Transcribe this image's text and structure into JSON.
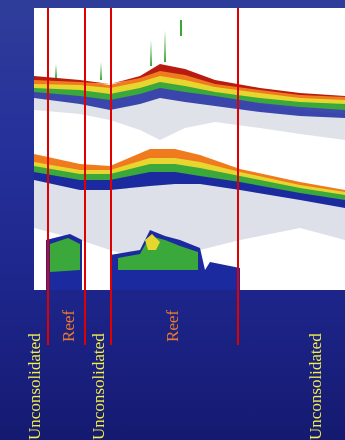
{
  "figure": {
    "segments": [
      {
        "id": "unconsolidated-1",
        "label": "Unconsolidated",
        "class": "unconsolidated"
      },
      {
        "id": "reef-1",
        "label": "Reef",
        "class": "reef"
      },
      {
        "id": "unconsolidated-2",
        "label": "Unconsolidated",
        "class": "unconsolidated"
      },
      {
        "id": "reef-2",
        "label": "Reef",
        "class": "reef"
      },
      {
        "id": "unconsolidated-3",
        "label": "Unconsolidated",
        "class": "unconsolidated"
      }
    ],
    "colors": {
      "background": "#25309a",
      "panel": "#ffffff",
      "boundary_line": "#e00000",
      "unconsolidated_label": "#f2ee4a",
      "reef_label": "#f07a2a",
      "echo_strong": "#b81c10",
      "echo_orange": "#f07b1e",
      "echo_yellow": "#e8d630",
      "echo_green": "#3aa83a",
      "echo_blue": "#1c2aa0"
    }
  }
}
